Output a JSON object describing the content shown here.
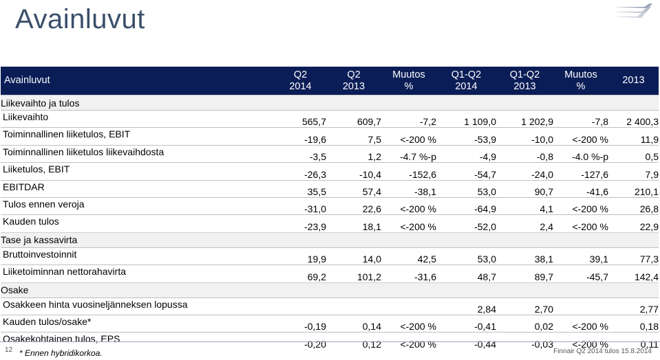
{
  "page": {
    "title": "Avainluvut",
    "page_number": "12"
  },
  "header": {
    "label": "Avainluvut",
    "columns": [
      [
        "Q2",
        "2014"
      ],
      [
        "Q2",
        "2013"
      ],
      [
        "Muutos",
        "%"
      ],
      [
        "Q1-Q2",
        "2014"
      ],
      [
        "Q1-Q2",
        "2013"
      ],
      [
        "Muutos",
        "%"
      ],
      [
        "2013",
        ""
      ]
    ]
  },
  "sections": [
    {
      "title": "Liikevaihto ja tulos",
      "rows": [
        {
          "label": "Liikevaihto",
          "values": [
            "565,7",
            "609,7",
            "-7,2",
            "1 109,0",
            "1 202,9",
            "-7,8",
            "2 400,3"
          ]
        },
        {
          "label": "Toiminnallinen liiketulos, EBIT",
          "values": [
            "-19,6",
            "7,5",
            "<-200 %",
            "-53,9",
            "-10,0",
            "<-200 %",
            "11,9"
          ]
        },
        {
          "label": "Toiminnallinen liiketulos liikevaihdosta",
          "values": [
            "-3,5",
            "1,2",
            "-4.7 %-p",
            "-4,9",
            "-0,8",
            "-4.0 %-p",
            "0,5"
          ]
        },
        {
          "label": "Liiketulos, EBIT",
          "values": [
            "-26,3",
            "-10,4",
            "-152,6",
            "-54,7",
            "-24,0",
            "-127,6",
            "7,9"
          ]
        },
        {
          "label": "EBITDAR",
          "values": [
            "35,5",
            "57,4",
            "-38,1",
            "53,0",
            "90,7",
            "-41,6",
            "210,1"
          ]
        },
        {
          "label": "Tulos ennen veroja",
          "values": [
            "-31,0",
            "22,6",
            "<-200 %",
            "-64,9",
            "4,1",
            "<-200 %",
            "26,8"
          ]
        },
        {
          "label": "Kauden tulos",
          "values": [
            "-23,9",
            "18,1",
            "<-200 %",
            "-52,0",
            "2,4",
            "<-200 %",
            "22,9"
          ]
        }
      ]
    },
    {
      "title": "Tase ja kassavirta",
      "rows": [
        {
          "label": "Bruttoinvestoinnit",
          "values": [
            "19,9",
            "14,0",
            "42,5",
            "53,0",
            "38,1",
            "39,1",
            "77,3"
          ]
        },
        {
          "label": "Liiketoiminnan nettorahavirta",
          "values": [
            "69,2",
            "101,2",
            "-31,6",
            "48,7",
            "89,7",
            "-45,7",
            "142,4"
          ]
        }
      ]
    },
    {
      "title": "Osake",
      "rows": [
        {
          "label": "Osakkeen hinta vuosineljänneksen lopussa",
          "values": [
            "",
            "",
            "",
            "2,84",
            "2,70",
            "",
            "2,77"
          ]
        },
        {
          "label": "Kauden tulos/osake*",
          "values": [
            "-0,19",
            "0,14",
            "<-200 %",
            "-0,41",
            "0,02",
            "<-200 %",
            "0,18"
          ]
        },
        {
          "label": "Osakekohtainen tulos, EPS",
          "values": [
            "-0,20",
            "0,12",
            "<-200 %",
            "-0,44",
            "-0,03",
            "<-200 %",
            "0,11"
          ]
        }
      ]
    }
  ],
  "footnote": "* Ennen hybridikorkoa.",
  "footer": "Finnair Q2 2014 tulos 15.8.2014",
  "colors": {
    "header_bg": "#0b1d57",
    "title": "#3a4f6a",
    "section_bg": "#f1f1f1"
  },
  "icons": {
    "logo": "finnair-logo-icon"
  }
}
